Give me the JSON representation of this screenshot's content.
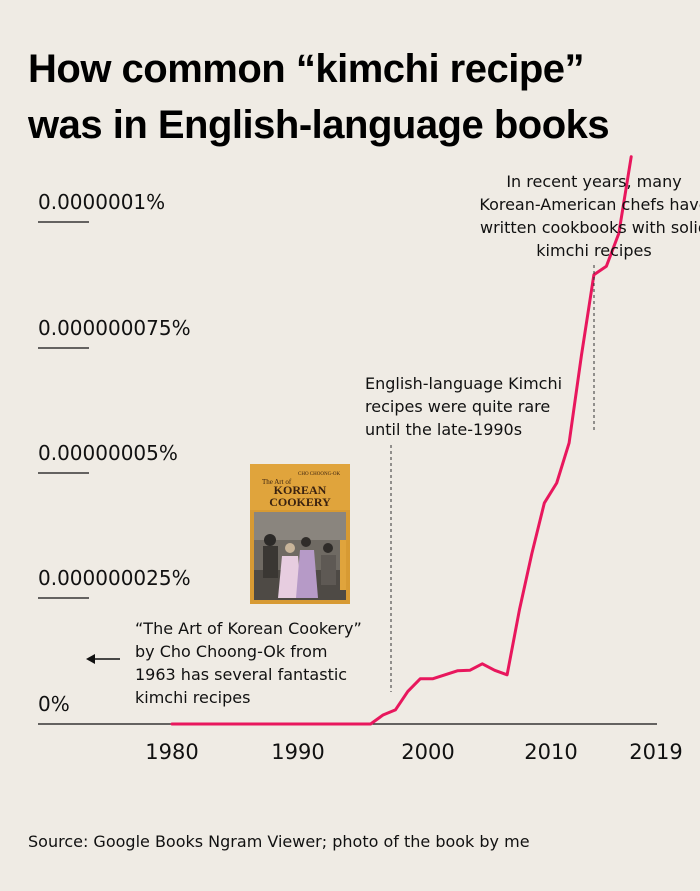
{
  "chart_data": {
    "type": "line",
    "title": "How common “kimchi recipe” was in English-language books",
    "title_lines": [
      "How common “kimchi recipe”",
      "was in English-language books"
    ],
    "xlabel": "",
    "ylabel": "",
    "x_ticks": [
      "1980",
      "1990",
      "2000",
      "2010",
      "2019"
    ],
    "y_ticks": [
      "0%",
      "0.000000025%",
      "0.00000005%",
      "0.000000075%",
      "0.0000001%"
    ],
    "xlim": [
      1980,
      2019
    ],
    "ylim": [
      0,
      1e-07
    ],
    "grid": false,
    "line_color": "#e8175d",
    "series": [
      {
        "x": [
          1980,
          1985,
          1990,
          1995,
          1996,
          1997,
          1998,
          1999,
          2000,
          2001,
          2002,
          2003,
          2004,
          2005,
          2006,
          2007,
          2008,
          2009,
          2010,
          2011,
          2012,
          2013,
          2014,
          2015,
          2016,
          2017
        ],
        "y": [
          0,
          0,
          0,
          0,
          0,
          1.8e-09,
          2.8e-09,
          6.5e-09,
          9e-09,
          9e-09,
          9.8e-09,
          1.06e-08,
          1.07e-08,
          1.2e-08,
          1.07e-08,
          9.8e-09,
          2.28e-08,
          3.4e-08,
          4.4e-08,
          4.8e-08,
          5.6e-08,
          7.35e-08,
          8.95e-08,
          9.12e-08,
          9.77e-08,
          1.13e-07
        ]
      }
    ],
    "annotations": [
      {
        "id": "recent",
        "lines": [
          "In recent years, many",
          "Korean-American chefs have",
          "written cookbooks with solid",
          "kimchi recipes"
        ]
      },
      {
        "id": "rare",
        "lines": [
          "English-language Kimchi",
          "recipes were quite rare",
          "until the late-1990s"
        ]
      },
      {
        "id": "book",
        "lines": [
          "“The Art of Korean Cookery”",
          "by Cho Choong-Ok from",
          "1963 has several fantastic",
          "kimchi recipes"
        ]
      }
    ],
    "book_cover": {
      "title_small": "The Art of",
      "title_main_1": "KOREAN",
      "title_main_2": "COOKERY",
      "author": "CHO CHOONG-OK"
    },
    "source": "Source: Google Books Ngram Viewer; photo of the book by me"
  }
}
